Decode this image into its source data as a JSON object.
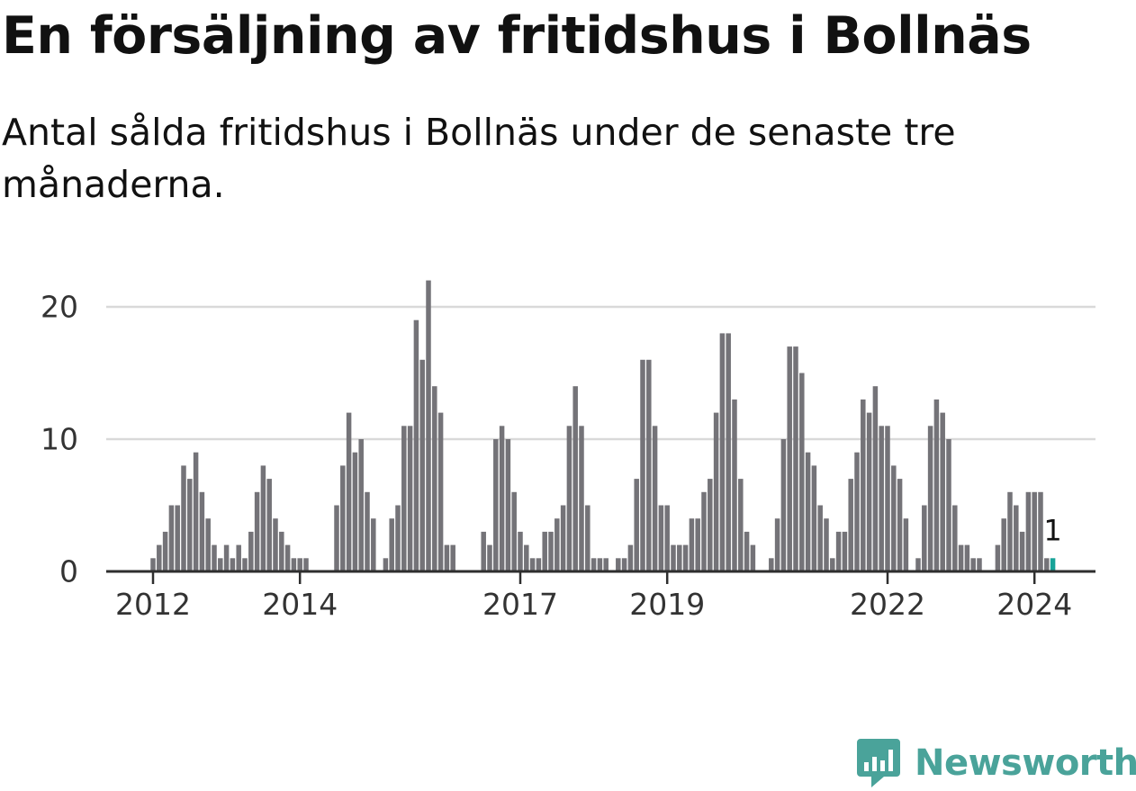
{
  "title": "En försäljning av fritidshus i Bollnäs",
  "subtitle": "Antal sålda fritidshus i Bollnäs under de senaste tre månaderna.",
  "brand": {
    "name": "Newsworthy"
  },
  "colors": {
    "bar": "#747378",
    "highlight": "#17a398",
    "grid": "#d9d9d9",
    "axis": "#2e2e2e",
    "text": "#111111",
    "tick_text": "#333333",
    "brand": "#4aa39a"
  },
  "chart_data": {
    "type": "bar",
    "x_tick_labels": [
      "2012",
      "2014",
      "2017",
      "2019",
      "2022",
      "2024"
    ],
    "y_ticks": [
      0,
      10,
      20
    ],
    "ylim": [
      0,
      23
    ],
    "grid": true,
    "values": [
      1,
      2,
      3,
      5,
      5,
      8,
      7,
      9,
      6,
      4,
      2,
      1,
      2,
      1,
      2,
      1,
      3,
      6,
      8,
      7,
      4,
      3,
      2,
      1,
      1,
      1,
      0,
      0,
      0,
      0,
      5,
      8,
      12,
      9,
      10,
      6,
      4,
      0,
      1,
      4,
      5,
      11,
      11,
      19,
      16,
      22,
      14,
      12,
      2,
      2,
      0,
      0,
      0,
      0,
      3,
      2,
      10,
      11,
      10,
      6,
      3,
      2,
      1,
      1,
      3,
      3,
      4,
      5,
      11,
      14,
      11,
      5,
      1,
      1,
      1,
      0,
      1,
      1,
      2,
      7,
      16,
      16,
      11,
      5,
      5,
      2,
      2,
      2,
      4,
      4,
      6,
      7,
      12,
      18,
      18,
      13,
      7,
      3,
      2,
      0,
      0,
      1,
      4,
      10,
      17,
      17,
      15,
      9,
      8,
      5,
      4,
      1,
      3,
      3,
      7,
      9,
      13,
      12,
      14,
      11,
      11,
      8,
      7,
      4,
      0,
      1,
      5,
      11,
      13,
      12,
      10,
      5,
      2,
      2,
      1,
      1,
      0,
      0,
      2,
      4,
      6,
      5,
      3,
      6,
      6,
      6,
      1,
      1
    ],
    "highlight_last": true,
    "annotation": "1"
  }
}
